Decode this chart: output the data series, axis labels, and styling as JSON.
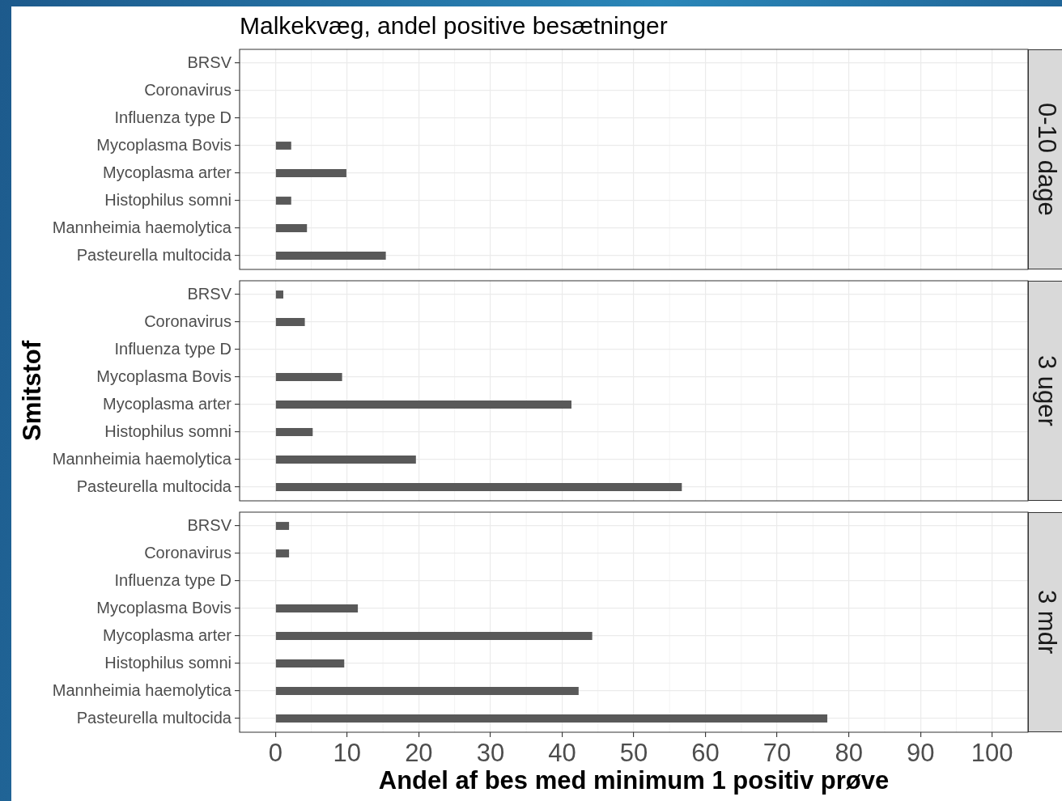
{
  "chart_data": [
    {
      "type": "bar",
      "orientation": "horizontal",
      "title": "Malkekvæg, andel positive besætninger",
      "subtitle": "0-10 dage",
      "categories": [
        "BRSV",
        "Coronavirus",
        "Influenza type D",
        "Mycoplasma Bovis",
        "Mycoplasma arter",
        "Histophilus somni",
        "Mannheimia haemolytica",
        "Pasteurella multocida"
      ],
      "values": [
        null,
        null,
        null,
        2.2,
        9.9,
        2.2,
        4.4,
        15.4
      ],
      "color": "#595959",
      "xlim": [
        -5,
        105
      ],
      "xticks": [
        0,
        10,
        20,
        30,
        40,
        50,
        60,
        70,
        80,
        90,
        100
      ],
      "grid": true,
      "tick_labels": "y"
    },
    {
      "type": "bar",
      "orientation": "horizontal",
      "subtitle": "3 uger",
      "ylabel": "Smitstof",
      "categories": [
        "BRSV",
        "Coronavirus",
        "Influenza type D",
        "Mycoplasma Bovis",
        "Mycoplasma arter",
        "Histophilus somni",
        "Mannheimia haemolytica",
        "Pasteurella multocida"
      ],
      "values": [
        1.1,
        4.1,
        null,
        9.3,
        41.3,
        5.2,
        19.6,
        56.7
      ],
      "color": "#595959",
      "xlim": [
        -5,
        105
      ],
      "xticks": [
        0,
        10,
        20,
        30,
        40,
        50,
        60,
        70,
        80,
        90,
        100
      ],
      "grid": true,
      "tick_labels": "y"
    },
    {
      "type": "bar",
      "orientation": "horizontal",
      "subtitle": "3 mdr",
      "xlabel": "Andel af bes med minimum 1 positiv prøve",
      "categories": [
        "BRSV",
        "Coronavirus",
        "Influenza type D",
        "Mycoplasma Bovis",
        "Mycoplasma arter",
        "Histophilus somni",
        "Mannheimia haemolytica",
        "Pasteurella multocida"
      ],
      "values": [
        1.9,
        1.9,
        null,
        11.5,
        44.2,
        9.6,
        42.3,
        77.0
      ],
      "color": "#595959",
      "xlim": [
        -5,
        105
      ],
      "xticks": [
        0,
        10,
        20,
        30,
        40,
        50,
        60,
        70,
        80,
        90,
        100
      ],
      "grid": true
    }
  ]
}
